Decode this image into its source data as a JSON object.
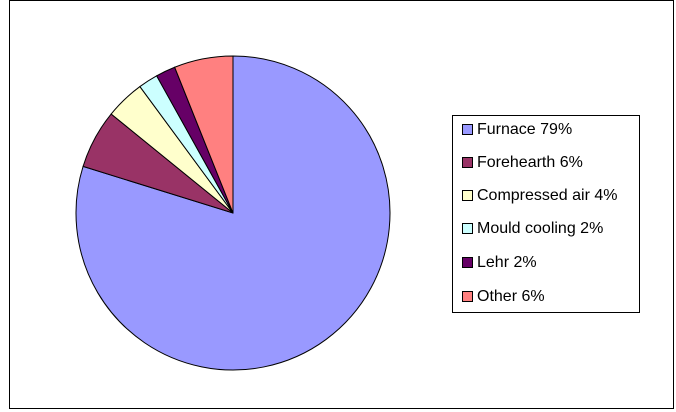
{
  "chart_data": {
    "type": "pie",
    "categories": [
      "Furnace 79%",
      "Forehearth 6%",
      "Compressed air 4%",
      "Mould cooling 2%",
      "Lehr 2%",
      "Other 6%"
    ],
    "values": [
      79,
      6,
      4,
      2,
      2,
      6
    ],
    "colors": [
      "#9999ff",
      "#993366",
      "#ffffcc",
      "#ccffff",
      "#660066",
      "#ff8080"
    ],
    "legend": "right"
  }
}
